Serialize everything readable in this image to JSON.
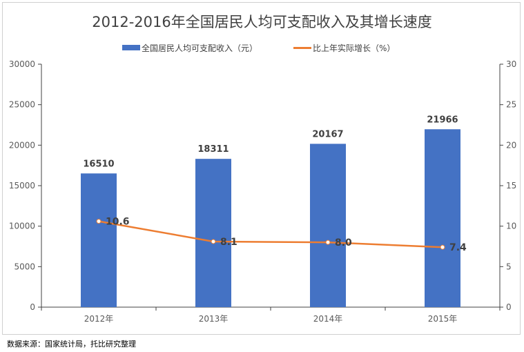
{
  "chart_data": {
    "type": "bar+line",
    "title": "2012-2016年全国居民人均可支配收入及其增长速度",
    "categories": [
      "2012年",
      "2013年",
      "2014年",
      "2015年"
    ],
    "series": [
      {
        "name": "全国居民人均可支配收入（元）",
        "type": "bar",
        "axis": "left",
        "values": [
          16510,
          18311,
          20167,
          21966
        ],
        "color": "#4472c4"
      },
      {
        "name": "比上年实际增长（%）",
        "type": "line",
        "axis": "right",
        "values": [
          10.6,
          8.1,
          8.0,
          7.4
        ],
        "labels": [
          "10.6",
          "8.1",
          "8.0",
          "7.4"
        ],
        "color": "#ed7d31"
      }
    ],
    "y_left": {
      "min": 0,
      "max": 30000,
      "ticks": [
        "0",
        "5000",
        "10000",
        "15000",
        "20000",
        "25000",
        "30000"
      ]
    },
    "y_right": {
      "min": 0,
      "max": 30,
      "ticks": [
        "0",
        "5",
        "10",
        "15",
        "20",
        "25",
        "30"
      ]
    },
    "grid": false,
    "legend_position": "top"
  },
  "source_note": "数据来源：国家统计局，托比研究整理"
}
